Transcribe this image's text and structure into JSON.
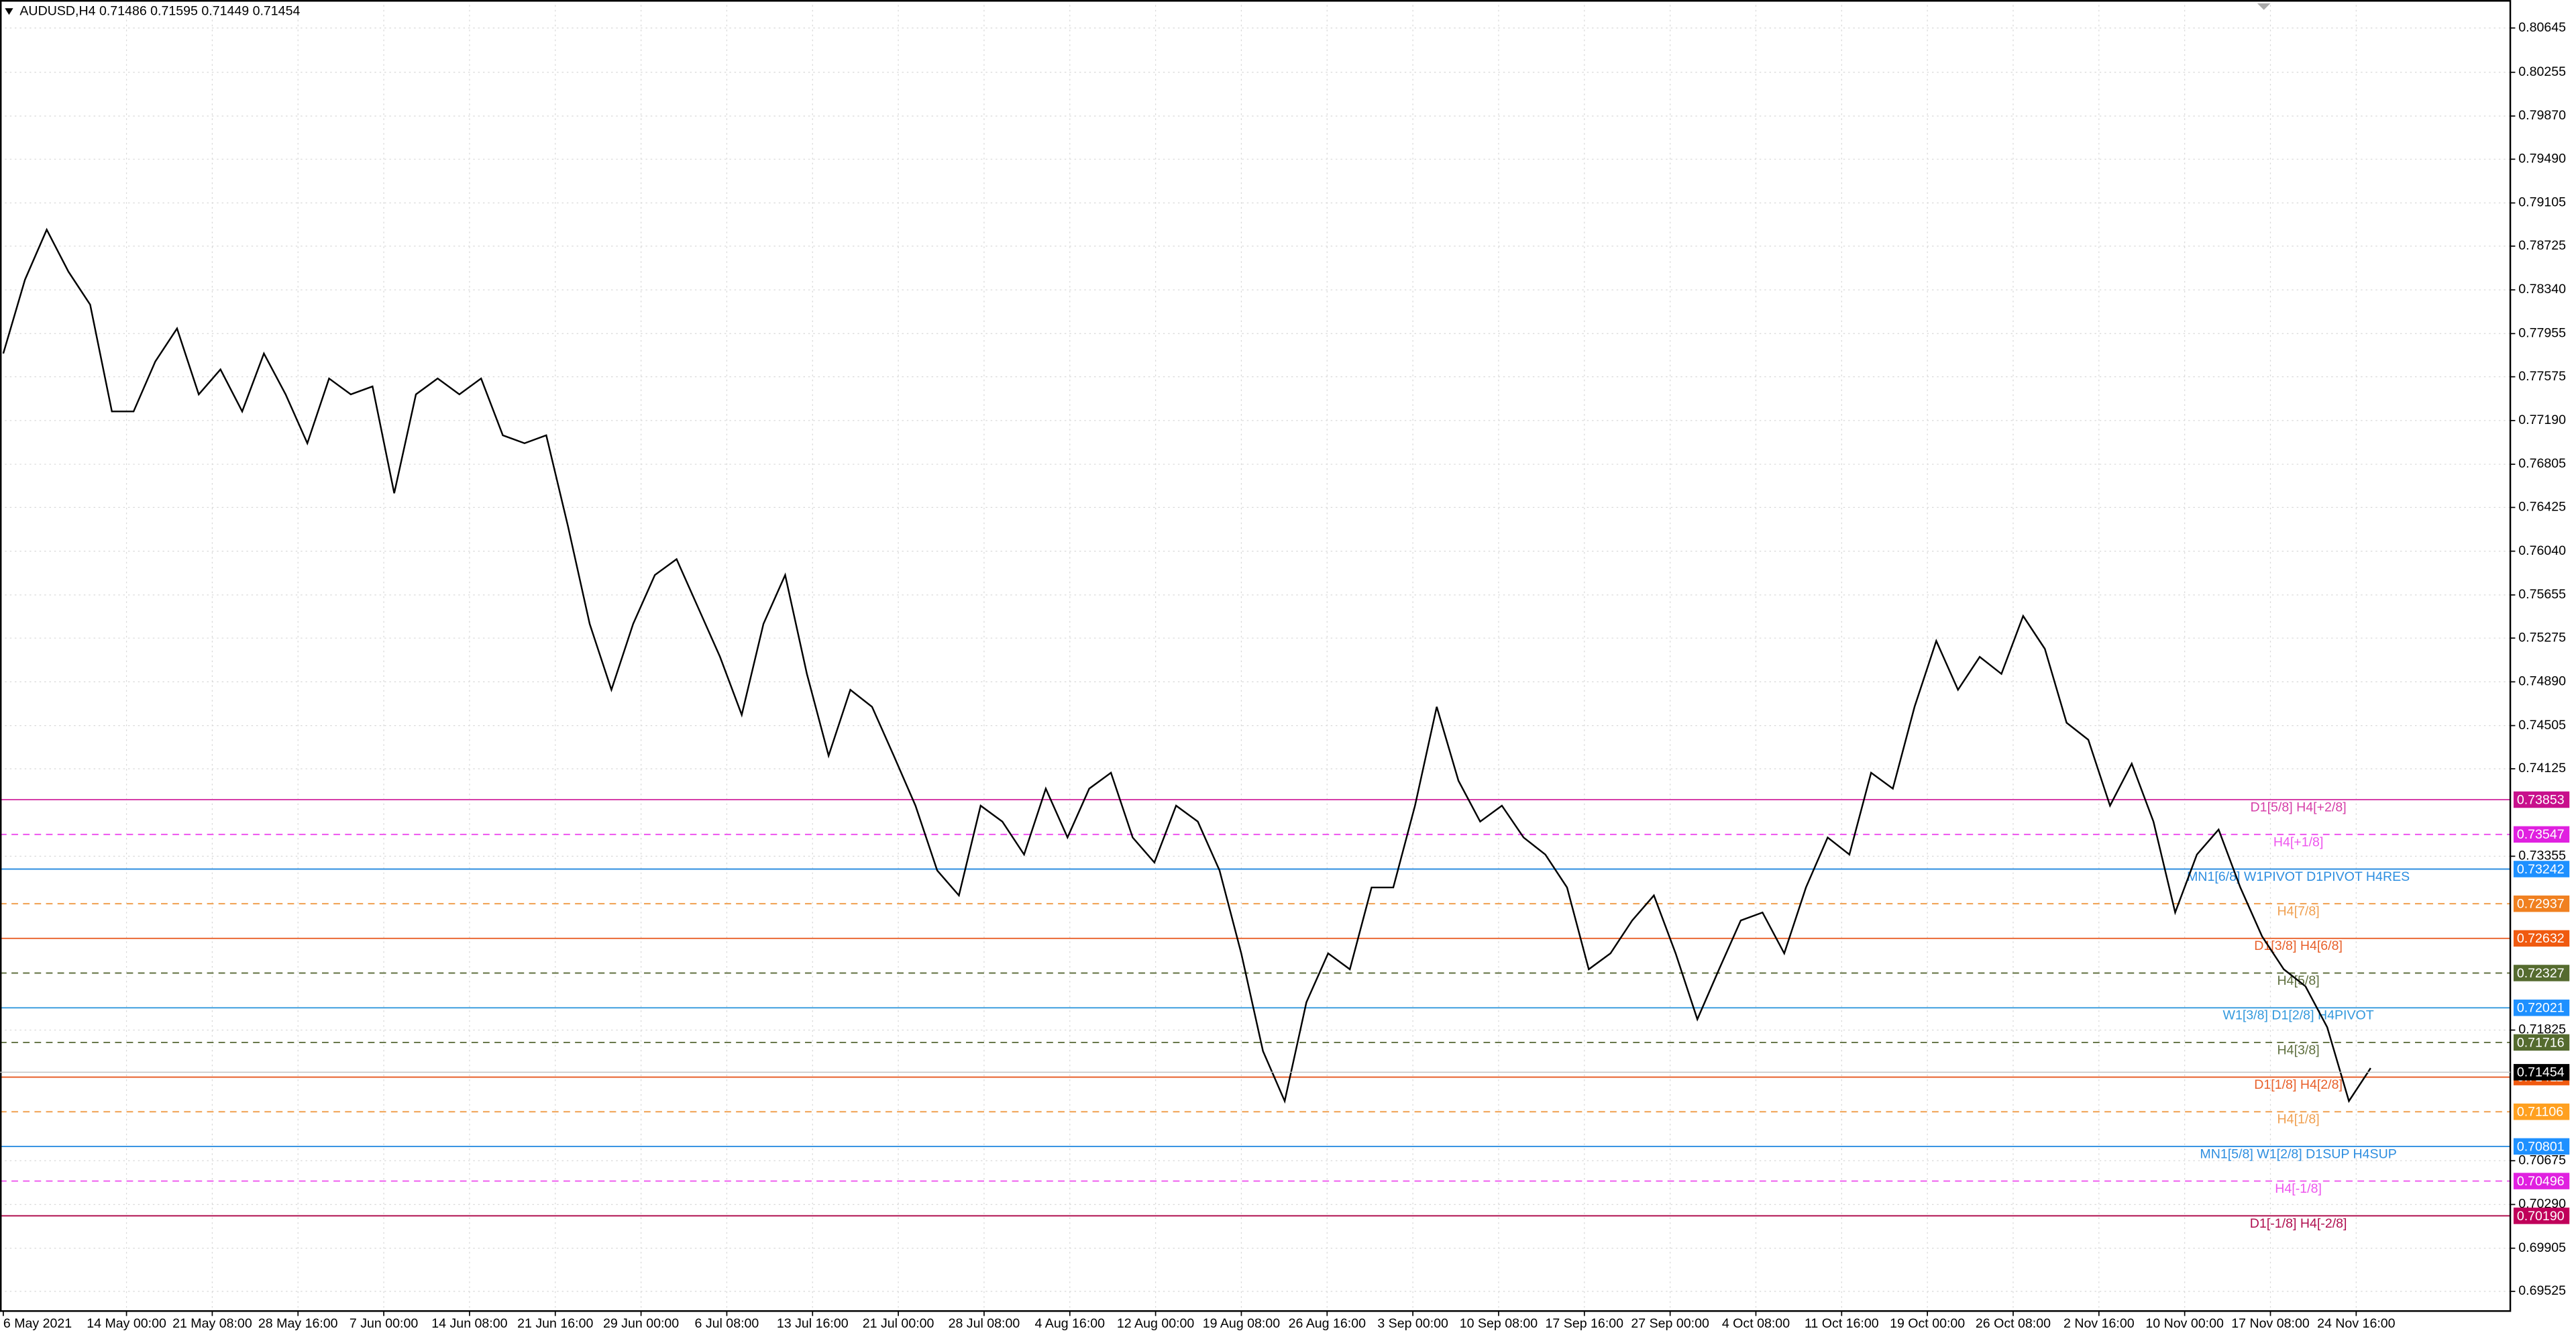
{
  "chart_data": {
    "type": "line",
    "title": "AUDUSD,H4  0.71486 0.71595 0.71449 0.71454",
    "color": "#000000",
    "x_labels": [
      "6 May 2021",
      "14 May 00:00",
      "21 May 08:00",
      "28 May 16:00",
      "7 Jun 00:00",
      "14 Jun 08:00",
      "21 Jun 16:00",
      "29 Jun 00:00",
      "6 Jul 08:00",
      "13 Jul 16:00",
      "21 Jul 00:00",
      "28 Jul 08:00",
      "4 Aug 16:00",
      "12 Aug 00:00",
      "19 Aug 08:00",
      "26 Aug 16:00",
      "3 Sep 00:00",
      "10 Sep 08:00",
      "17 Sep 16:00",
      "27 Sep 00:00",
      "4 Oct 08:00",
      "11 Oct 16:00",
      "19 Oct 00:00",
      "26 Oct 08:00",
      "2 Nov 16:00",
      "10 Nov 00:00",
      "17 Nov 08:00",
      "24 Nov 16:00"
    ],
    "values": [
      0.7778,
      0.7843,
      0.7887,
      0.785,
      0.7821,
      0.7727,
      0.7727,
      0.7771,
      0.78,
      0.7742,
      0.7764,
      0.7727,
      0.7778,
      0.7742,
      0.7699,
      0.7756,
      0.7742,
      0.7749,
      0.7655,
      0.7742,
      0.7756,
      0.7742,
      0.7756,
      0.7706,
      0.7699,
      0.7706,
      0.7626,
      0.754,
      0.7482,
      0.754,
      0.7583,
      0.7597,
      0.7554,
      0.7511,
      0.746,
      0.754,
      0.7583,
      0.7496,
      0.7424,
      0.7482,
      0.7467,
      0.7424,
      0.738,
      0.7323,
      0.7301,
      0.738,
      0.7366,
      0.7337,
      0.7395,
      0.7352,
      0.7395,
      0.7409,
      0.7352,
      0.733,
      0.738,
      0.7366,
      0.7323,
      0.725,
      0.7164,
      0.712,
      0.7207,
      0.725,
      0.7236,
      0.7308,
      0.7308,
      0.738,
      0.7467,
      0.7402,
      0.7366,
      0.738,
      0.7352,
      0.7337,
      0.7308,
      0.7236,
      0.725,
      0.7279,
      0.7301,
      0.725,
      0.7192,
      0.7236,
      0.7279,
      0.7286,
      0.725,
      0.7308,
      0.7352,
      0.7337,
      0.7409,
      0.7395,
      0.7467,
      0.7525,
      0.7482,
      0.7511,
      0.7496,
      0.7547,
      0.7518,
      0.7453,
      0.7438,
      0.738,
      0.7417,
      0.7366,
      0.7286,
      0.7337,
      0.7359,
      0.7308,
      0.7265,
      0.7236,
      0.7221,
      0.7185,
      0.712,
      0.7149
    ],
    "ylim": [
      0.69352,
      0.80891
    ],
    "yticks": [
      0.80645,
      0.80255,
      {
        "value": 0.7987,
        "label": "0.79870"
      },
      {
        "value": 0.7949,
        "label": "0.79490"
      },
      0.79105,
      0.78725,
      {
        "value": 0.7834,
        "label": "0.78340"
      },
      0.77955,
      0.77575,
      {
        "value": 0.7719,
        "label": "0.77190"
      },
      0.76805,
      0.76425,
      {
        "value": 0.7604,
        "label": "0.76040"
      },
      0.75655,
      0.75275,
      {
        "value": 0.7489,
        "label": "0.74890"
      },
      0.74505,
      0.74125,
      0.73355,
      0.71825,
      0.70675,
      {
        "value": 0.7029,
        "label": "0.70290"
      },
      0.69905,
      0.69525
    ],
    "grid": true,
    "current_price": 0.71454,
    "current_price_color": "#000000",
    "levels": [
      {
        "label": "D1[5/8] H4[+2/8]",
        "value": 0.73853,
        "color": "#d63fa8",
        "box_color": "#c8108c",
        "dashed": false
      },
      {
        "label": "H4[+1/8]",
        "value": 0.73547,
        "color": "#ee55ee",
        "box_color": "#e020e0",
        "dashed": true
      },
      {
        "label": "MN1[6/8] W1PIVOT D1PIVOT H4RES",
        "value": 0.73242,
        "color": "#2d8ee0",
        "box_color": "#1e90ff",
        "dashed": false
      },
      {
        "label": "H4[7/8]",
        "value": 0.72937,
        "color": "#f0a050",
        "box_color": "#f08020",
        "dashed": true
      },
      {
        "label": "D1[3/8] H4[6/8]",
        "value": 0.72632,
        "color": "#e8602a",
        "box_color": "#f05a10",
        "dashed": false
      },
      {
        "label": "H4[5/8]",
        "value": 0.72327,
        "color": "#607040",
        "box_color": "#556b2f",
        "dashed": true
      },
      {
        "label": "W1[3/8] D1[2/8] H4PIVOT",
        "value": 0.72021,
        "color": "#3399dd",
        "box_color": "#1e90ff",
        "dashed": false
      },
      {
        "label": "H4[3/8]",
        "value": 0.71716,
        "color": "#607040",
        "box_color": "#556b2f",
        "dashed": true
      },
      {
        "label": "D1[1/8] H4[2/8]",
        "value": 0.71411,
        "color": "#e8602a",
        "box_color": "#f05a10",
        "dashed": false
      },
      {
        "label": "H4[1/8]",
        "value": 0.71106,
        "color": "#f0a050",
        "box_color": "#ffa020",
        "dashed": true
      },
      {
        "label": "MN1[5/8] W1[2/8] D1SUP H4SUP",
        "value": 0.70801,
        "color": "#2d8ee0",
        "box_color": "#1e90ff",
        "dashed": false
      },
      {
        "label": "H4[-1/8]",
        "value": 0.70496,
        "color": "#ee55ee",
        "box_color": "#e020e0",
        "dashed": true
      },
      {
        "label": "D1[-1/8] H4[-2/8]",
        "value": 0.7019,
        "value_label": "0.70190",
        "color": "#b01050",
        "box_color": "#c0005a",
        "dashed": false
      }
    ]
  }
}
